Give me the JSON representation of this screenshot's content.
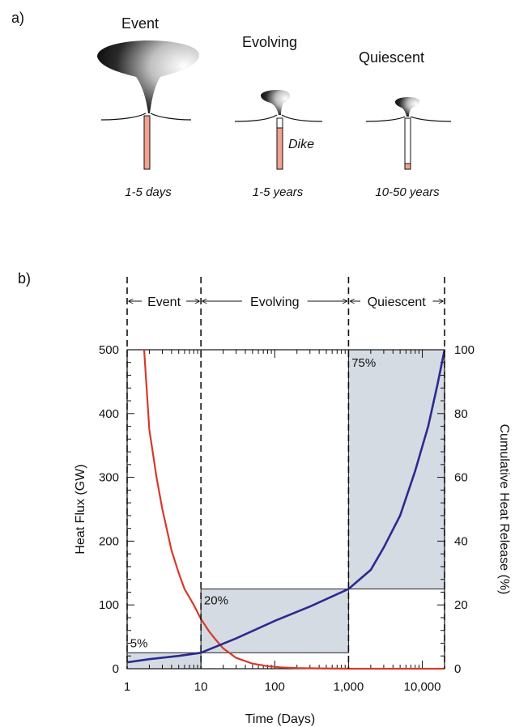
{
  "panel_a": {
    "label": "a)",
    "stages": [
      {
        "name": "Event",
        "duration": "1-5 days"
      },
      {
        "name": "Evolving",
        "duration": "1-5 years"
      },
      {
        "name": "Quiescent",
        "duration": "10-50 years"
      }
    ],
    "dike_label": "Dike",
    "colors": {
      "plume": "#111111",
      "dike_fill": "#f2a38f"
    }
  },
  "panel_b": {
    "label": "b)",
    "phases": [
      "Event",
      "Evolving",
      "Quiescent"
    ],
    "box_labels": [
      "5%",
      "20%",
      "75%"
    ],
    "xlabel": "Time (Days)",
    "ylabel_left": "Heat Flux (GW)",
    "ylabel_right": "Cumulative Heat Release (%)",
    "x_ticks": [
      "1",
      "10",
      "100",
      "1,000",
      "10,000"
    ],
    "y_left_ticks": [
      "0",
      "100",
      "200",
      "300",
      "400",
      "500"
    ],
    "y_right_ticks": [
      "0",
      "20",
      "40",
      "60",
      "80",
      "100"
    ],
    "colors": {
      "heat_flux": "#d63a2a",
      "cumulative": "#2b2a8f",
      "box": "#d5dbe2"
    }
  },
  "chart_data": {
    "type": "line",
    "x_scale": "log",
    "xlabel": "Time (Days)",
    "xlim": [
      1,
      20000
    ],
    "ylabel": "Heat Flux (GW)",
    "ylim": [
      0,
      500
    ],
    "y2label": "Cumulative Heat Release (%)",
    "y2lim": [
      0,
      100
    ],
    "phase_boundaries": [
      1,
      10,
      1000,
      20000
    ],
    "boxes": [
      {
        "label": "5%",
        "x": [
          1,
          10
        ],
        "y": [
          0,
          25
        ]
      },
      {
        "label": "20%",
        "x": [
          10,
          1000
        ],
        "y": [
          25,
          125
        ]
      },
      {
        "label": "75%",
        "x": [
          1000,
          20000
        ],
        "y": [
          125,
          500
        ]
      }
    ],
    "series": [
      {
        "axis": "left",
        "x": [
          1.7,
          2,
          2.5,
          3,
          4,
          5,
          6,
          8,
          10,
          13,
          16,
          20,
          30,
          50,
          80,
          120,
          200,
          400,
          1000,
          5000,
          20000
        ],
        "y": [
          500,
          375,
          300,
          250,
          185,
          150,
          125,
          100,
          78,
          58,
          45,
          32,
          17,
          8,
          4,
          2,
          1,
          0.5,
          0,
          0,
          0
        ]
      },
      {
        "axis": "right",
        "x": [
          1,
          2,
          5,
          10,
          30,
          100,
          300,
          1000,
          2000,
          3000,
          5000,
          8000,
          12000,
          16000,
          20000
        ],
        "y": [
          2,
          3,
          4,
          5,
          9.5,
          15,
          19.5,
          25,
          31,
          38,
          48,
          62,
          76,
          89,
          100
        ]
      }
    ]
  }
}
